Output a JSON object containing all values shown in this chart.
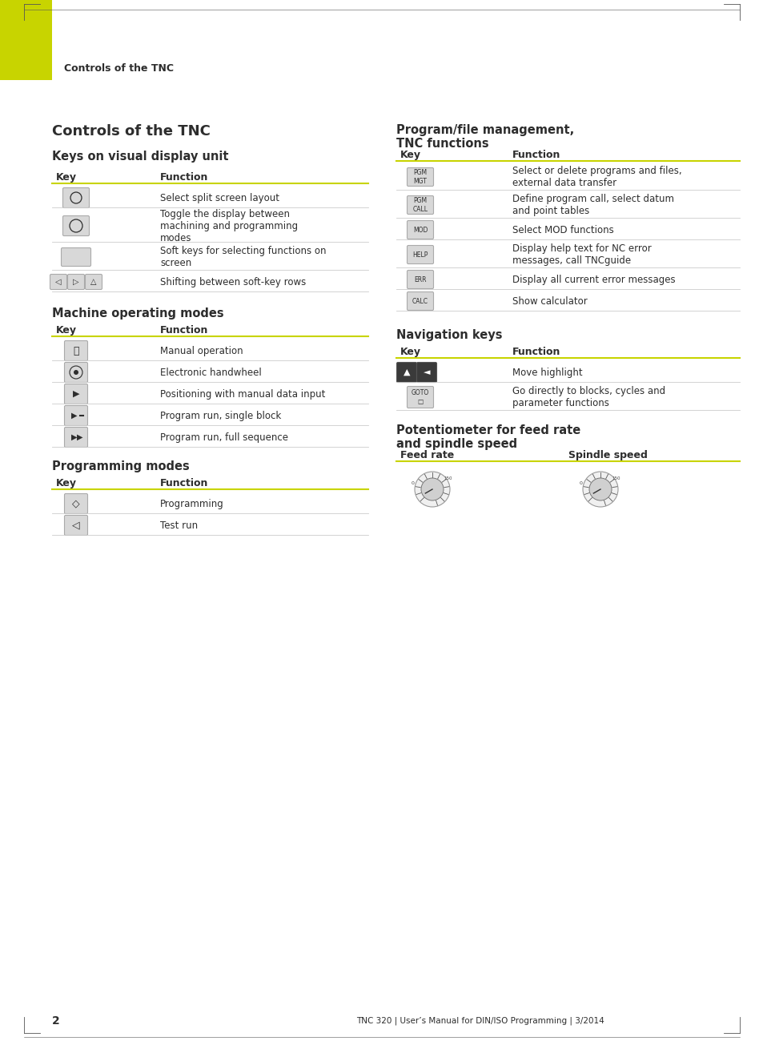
{
  "bg_color": "#ffffff",
  "text_color": "#2d2d2d",
  "accent_color": "#c8d400",
  "key_bg": "#d8d8d8",
  "key_border": "#aaaaaa",
  "separator_color": "#cccccc",
  "header_line_color": "#c8d400",
  "page_number": "2",
  "footer_text": "TNC 320 | User’s Manual for DIN/ISO Programming | 3/2014",
  "top_header_text": "Controls of the TNC",
  "section1_title": "Controls of the TNC",
  "section1_subtitle": "Keys on visual display unit",
  "section1_col1": "Key",
  "section1_col2": "Function",
  "section1_rows": [
    {
      "key_type": "circle_btn",
      "func": "Select split screen layout"
    },
    {
      "key_type": "circle_btn2",
      "func": "Toggle the display between\nmachining and programming\nmodes"
    },
    {
      "key_type": "rect_btn",
      "func": "Soft keys for selecting functions on\nscreen"
    },
    {
      "key_type": "arrow_btns",
      "func": "Shifting between soft-key rows"
    }
  ],
  "section2_title": "Machine operating modes",
  "section2_col1": "Key",
  "section2_col2": "Function",
  "section2_rows": [
    {
      "key_type": "man_op",
      "func": "Manual operation"
    },
    {
      "key_type": "handwheel",
      "func": "Electronic handwheel"
    },
    {
      "key_type": "pos_mdi",
      "func": "Positioning with manual data input"
    },
    {
      "key_type": "prog_single",
      "func": "Program run, single block"
    },
    {
      "key_type": "prog_full",
      "func": "Program run, full sequence"
    }
  ],
  "section3_title": "Programming modes",
  "section3_col1": "Key",
  "section3_col2": "Function",
  "section3_rows": [
    {
      "key_type": "prog_mode",
      "func": "Programming"
    },
    {
      "key_type": "test_run",
      "func": "Test run"
    }
  ],
  "section4_title": "Program/file management,\nTNC functions",
  "section4_col1": "Key",
  "section4_col2": "Function",
  "section4_rows": [
    {
      "label": "PGM\nMGT",
      "func": "Select or delete programs and files,\nexternal data transfer"
    },
    {
      "label": "PGM\nCALL",
      "func": "Define program call, select datum\nand point tables"
    },
    {
      "label": "MOD",
      "func": "Select MOD functions"
    },
    {
      "label": "HELP",
      "func": "Display help text for NC error\nmessages, call TNCguide"
    },
    {
      "label": "ERR",
      "func": "Display all current error messages"
    },
    {
      "label": "CALC",
      "func": "Show calculator"
    }
  ],
  "section5_title": "Navigation keys",
  "section5_col1": "Key",
  "section5_col2": "Function",
  "section5_rows": [
    {
      "func": "Move highlight"
    },
    {
      "func": "Go directly to blocks, cycles and\nparameter functions"
    }
  ],
  "section6_title": "Potentiometer for feed rate\nand spindle speed",
  "section6_col1": "Feed rate",
  "section6_col2": "Spindle speed"
}
